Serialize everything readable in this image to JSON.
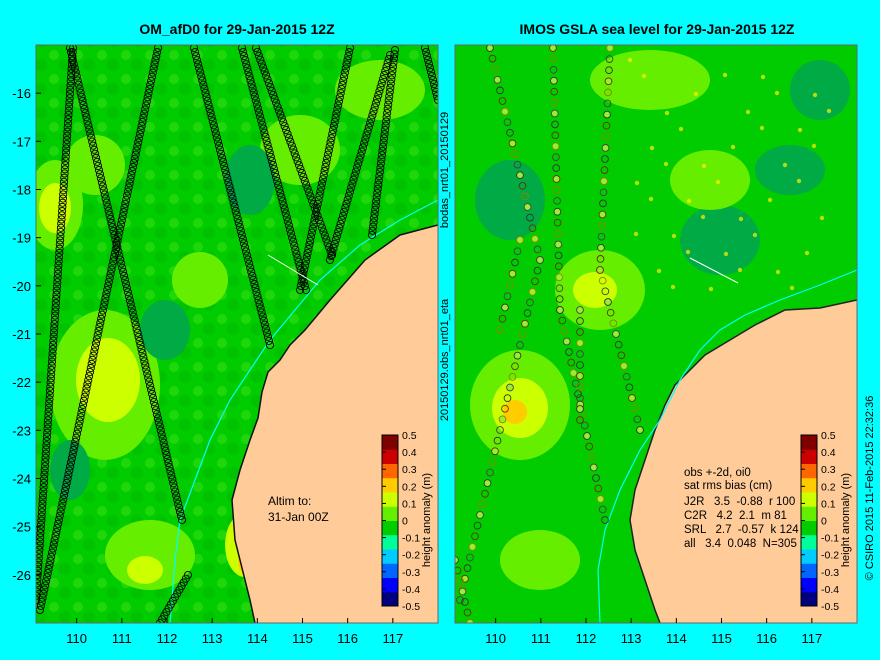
{
  "background_color": "#00ffff",
  "land_color": "#ffcc99",
  "track_marker_color": "#000000",
  "panels": {
    "left": {
      "title": "OM_afD0 for 29-Jan-2015 12Z",
      "note_line1": "Altim to:",
      "note_line2": "31-Jan 00Z"
    },
    "right": {
      "title": "IMOS GSLA sea level  for 29-Jan-2015 12Z",
      "stats_title": "obs +-2d, oi0",
      "stats_header": "sat  rms  bias  (cm)",
      "stats_rows": [
        "J2R   3.5  -0.88  r 100",
        "C2R   4.2  2.1  m 81",
        "SRL   2.7  -0.57  k 124",
        "all   3.4  0.048  N=305"
      ]
    }
  },
  "side_labels": {
    "between_top": "bodas_nrt01_20150129",
    "between_bottom": "20150129.obs_nrt01_eta",
    "right_edge": "© CSIRO 2015  11-Feb-2015 22:32:36"
  },
  "chart_data": {
    "type": "heatmap",
    "x_axis": {
      "ticks": [
        "110",
        "111",
        "112",
        "113",
        "114",
        "115",
        "116",
        "117"
      ],
      "range": [
        109.1,
        118.0
      ]
    },
    "y_axis": {
      "ticks": [
        "-16",
        "-17",
        "-18",
        "-19",
        "-20",
        "-21",
        "-22",
        "-23",
        "-24",
        "-25",
        "-26"
      ],
      "range": [
        -27.0,
        -15.0
      ]
    },
    "colorbar": {
      "label": "height anomaly (m)",
      "ticks": [
        "0.5",
        "0.4",
        "0.3",
        "0.2",
        "0.1",
        "0",
        "-0.1",
        "-0.2",
        "-0.3",
        "-0.4",
        "-0.5"
      ],
      "range": [
        -0.5,
        0.5
      ],
      "colors": [
        "#00007f",
        "#0000ff",
        "#0066ff",
        "#00ccff",
        "#00ff99",
        "#00cc00",
        "#66ee00",
        "#ccff00",
        "#ffcc00",
        "#ff6600",
        "#cc0000",
        "#7f0000"
      ]
    }
  }
}
